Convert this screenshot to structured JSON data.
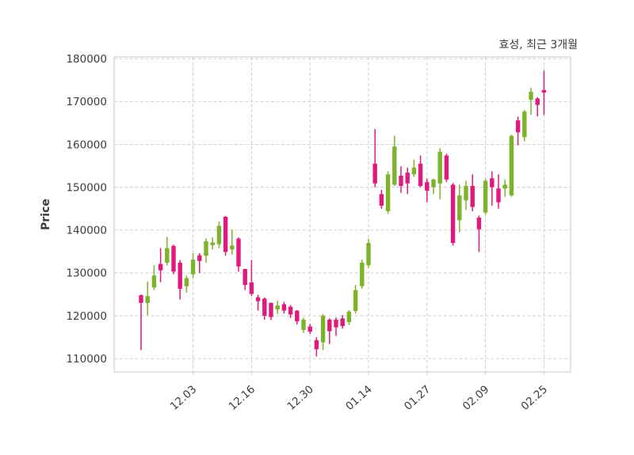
{
  "title": "효성, 최근 3개월",
  "ylabel": "Price",
  "colors": {
    "up": "#7db32b",
    "down": "#df1a7c",
    "grid": "#c9c9c9",
    "spine": "#cfcfcf",
    "tick_text": "#3c3c3c",
    "background": "#ffffff"
  },
  "chart_data": {
    "type": "candlestick",
    "title": "효성, 최근 3개월",
    "xlabel": "",
    "ylabel": "Price",
    "grid": true,
    "legend": false,
    "ylim": [
      106900,
      180400
    ],
    "y_ticks": [
      110000,
      120000,
      130000,
      140000,
      150000,
      160000,
      170000,
      180000
    ],
    "x_ticks": [
      {
        "index": 8,
        "label": "12.03"
      },
      {
        "index": 17,
        "label": "12.16"
      },
      {
        "index": 26,
        "label": "12.30"
      },
      {
        "index": 35,
        "label": "01.14"
      },
      {
        "index": 44,
        "label": "01.27"
      },
      {
        "index": 53,
        "label": "02.09"
      },
      {
        "index": 62,
        "label": "02.25"
      }
    ],
    "candles_format": [
      "open",
      "high",
      "low",
      "close"
    ],
    "candles": [
      [
        124800,
        125000,
        112000,
        123000
      ],
      [
        123000,
        128000,
        120100,
        124600
      ],
      [
        126600,
        131800,
        126000,
        129400
      ],
      [
        132100,
        135800,
        127800,
        130600
      ],
      [
        132400,
        138400,
        131800,
        135800
      ],
      [
        136300,
        136600,
        129700,
        130300
      ],
      [
        132400,
        133000,
        123800,
        126300
      ],
      [
        126900,
        129400,
        125400,
        128800
      ],
      [
        129700,
        134600,
        128800,
        133100
      ],
      [
        134100,
        134600,
        130000,
        132800
      ],
      [
        134000,
        138100,
        132400,
        137400
      ],
      [
        136500,
        138300,
        135500,
        137100
      ],
      [
        136700,
        142000,
        135800,
        141000
      ],
      [
        143100,
        143300,
        134000,
        134900
      ],
      [
        135500,
        140100,
        134300,
        136400
      ],
      [
        138000,
        138300,
        130300,
        131500
      ],
      [
        130900,
        131000,
        126000,
        127200
      ],
      [
        127800,
        133000,
        124600,
        125100
      ],
      [
        124300,
        124900,
        121200,
        123400
      ],
      [
        124000,
        124300,
        119100,
        120000
      ],
      [
        123000,
        123100,
        119000,
        119700
      ],
      [
        121500,
        123500,
        120400,
        122400
      ],
      [
        122700,
        123300,
        120500,
        121200
      ],
      [
        122100,
        122500,
        119500,
        120300
      ],
      [
        121200,
        121300,
        118000,
        118700
      ],
      [
        116700,
        119500,
        116000,
        119100
      ],
      [
        117500,
        118100,
        115800,
        116300
      ],
      [
        114300,
        115000,
        110500,
        112200
      ],
      [
        113800,
        120400,
        112000,
        120000
      ],
      [
        119100,
        119400,
        113400,
        116400
      ],
      [
        119100,
        119600,
        115300,
        117300
      ],
      [
        119400,
        120200,
        117000,
        117600
      ],
      [
        118500,
        121300,
        117800,
        121000
      ],
      [
        121100,
        127200,
        120500,
        126000
      ],
      [
        126900,
        133100,
        126300,
        132400
      ],
      [
        131800,
        138000,
        131200,
        137000
      ],
      [
        155500,
        163600,
        150000,
        150900
      ],
      [
        148400,
        149400,
        145000,
        145700
      ],
      [
        144400,
        153700,
        143800,
        153000
      ],
      [
        150600,
        162000,
        150300,
        159500
      ],
      [
        152700,
        154900,
        148700,
        150300
      ],
      [
        153400,
        154600,
        148400,
        150900
      ],
      [
        153000,
        156400,
        152400,
        154600
      ],
      [
        155500,
        157400,
        150000,
        150300
      ],
      [
        151200,
        152000,
        146500,
        149200
      ],
      [
        150000,
        152000,
        148400,
        151800
      ],
      [
        150900,
        159100,
        147200,
        158300
      ],
      [
        157400,
        157800,
        151200,
        151800
      ],
      [
        150600,
        151000,
        136400,
        137000
      ],
      [
        142300,
        150600,
        139500,
        148100
      ],
      [
        146900,
        151500,
        144700,
        150300
      ],
      [
        150300,
        153000,
        144400,
        145400
      ],
      [
        142900,
        143400,
        134900,
        140200
      ],
      [
        144100,
        152000,
        143600,
        151500
      ],
      [
        152100,
        153700,
        145700,
        150000
      ],
      [
        149700,
        153000,
        145000,
        146500
      ],
      [
        149700,
        151800,
        147800,
        150600
      ],
      [
        148100,
        162300,
        147800,
        162000
      ],
      [
        165600,
        166500,
        159800,
        162800
      ],
      [
        161700,
        168000,
        160700,
        167700
      ],
      [
        170400,
        173200,
        166900,
        172300
      ],
      [
        170700,
        171000,
        166500,
        169200
      ],
      [
        172700,
        177200,
        166900,
        172100
      ]
    ]
  }
}
